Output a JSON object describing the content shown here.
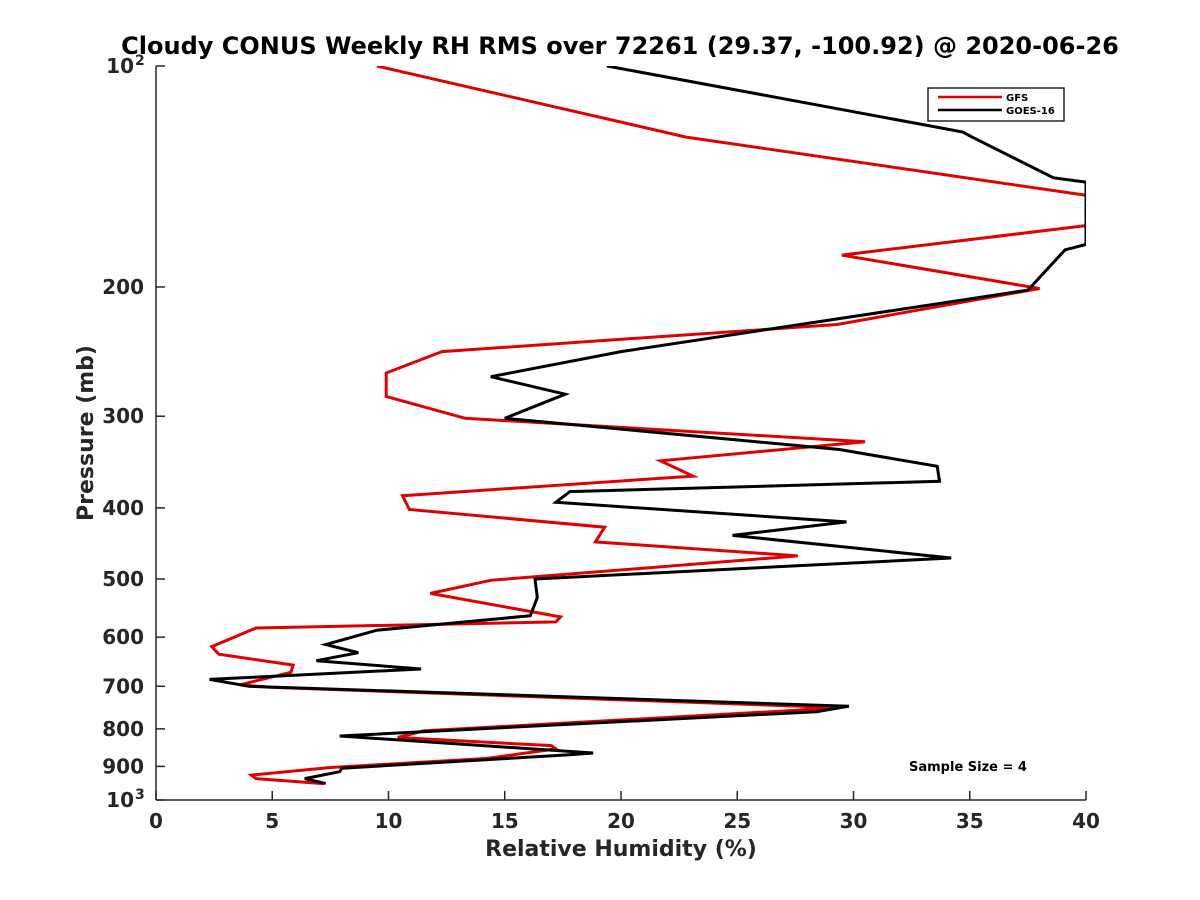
{
  "chart_data": {
    "type": "line",
    "title": "Cloudy CONUS Weekly RH RMS over 72261 (29.37, -100.92) @ 2020-06-26",
    "xlabel": "Relative Humidity (%)",
    "ylabel": "Pressure (mb)",
    "xlim": [
      0,
      40
    ],
    "ylim": [
      100,
      1000
    ],
    "y_scale": "log",
    "y_reversed": true,
    "grid": false,
    "legend_position": "top-right",
    "x_ticks": [
      0,
      5,
      10,
      15,
      20,
      25,
      30,
      35,
      40
    ],
    "y_ticks": [
      {
        "value": 100,
        "label": "10",
        "exp": "2"
      },
      {
        "value": 200,
        "label": "200"
      },
      {
        "value": 300,
        "label": "300"
      },
      {
        "value": 400,
        "label": "400"
      },
      {
        "value": 500,
        "label": "500"
      },
      {
        "value": 600,
        "label": "600"
      },
      {
        "value": 700,
        "label": "700"
      },
      {
        "value": 800,
        "label": "800"
      },
      {
        "value": 900,
        "label": "900"
      },
      {
        "value": 1000,
        "label": "10",
        "exp": "3"
      }
    ],
    "series": [
      {
        "name": "GFS",
        "color": "#e00000",
        "points": [
          [
            9.5,
            100
          ],
          [
            22.8,
            125
          ],
          [
            40.0,
            150
          ],
          [
            40.0,
            165
          ],
          [
            29.5,
            181
          ],
          [
            38.0,
            201
          ],
          [
            29.3,
            225
          ],
          [
            12.3,
            245
          ],
          [
            9.9,
            262
          ],
          [
            9.9,
            282
          ],
          [
            13.3,
            302
          ],
          [
            30.5,
            325
          ],
          [
            21.7,
            345
          ],
          [
            23.1,
            362
          ],
          [
            10.6,
            385
          ],
          [
            10.9,
            402
          ],
          [
            19.3,
            425
          ],
          [
            18.9,
            445
          ],
          [
            27.6,
            465
          ],
          [
            14.4,
            502
          ],
          [
            11.8,
            523
          ],
          [
            17.4,
            563
          ],
          [
            17.2,
            572
          ],
          [
            4.3,
            583
          ],
          [
            2.4,
            618
          ],
          [
            2.7,
            633
          ],
          [
            5.9,
            655
          ],
          [
            5.8,
            670
          ],
          [
            3.6,
            697
          ],
          [
            4.9,
            702
          ],
          [
            29.1,
            748
          ],
          [
            27.5,
            755
          ],
          [
            11.5,
            805
          ],
          [
            10.4,
            822
          ],
          [
            17.0,
            843
          ],
          [
            17.2,
            852
          ],
          [
            14.2,
            878
          ],
          [
            7.5,
            903
          ],
          [
            4.1,
            925
          ],
          [
            4.3,
            935
          ],
          [
            7.2,
            950
          ]
        ]
      },
      {
        "name": "GOES-16",
        "color": "#000000",
        "points": [
          [
            19.4,
            100
          ],
          [
            34.7,
            123
          ],
          [
            35.1,
            125
          ],
          [
            38.6,
            142
          ],
          [
            40.0,
            144
          ],
          [
            40.0,
            175
          ],
          [
            39.1,
            178
          ],
          [
            37.5,
            202
          ],
          [
            20.0,
            245
          ],
          [
            14.4,
            265
          ],
          [
            17.6,
            280
          ],
          [
            15.0,
            302
          ],
          [
            29.4,
            333
          ],
          [
            33.6,
            351
          ],
          [
            33.7,
            368
          ],
          [
            17.8,
            380
          ],
          [
            17.2,
            393
          ],
          [
            29.7,
            418
          ],
          [
            24.8,
            436
          ],
          [
            34.2,
            468
          ],
          [
            16.3,
            500
          ],
          [
            16.4,
            530
          ],
          [
            16.1,
            561
          ],
          [
            9.5,
            587
          ],
          [
            7.3,
            614
          ],
          [
            8.7,
            630
          ],
          [
            6.9,
            646
          ],
          [
            11.4,
            663
          ],
          [
            2.3,
            685
          ],
          [
            4.0,
            700
          ],
          [
            29.8,
            745
          ],
          [
            28.4,
            758
          ],
          [
            7.9,
            818
          ],
          [
            18.8,
            863
          ],
          [
            17.7,
            868
          ],
          [
            8.0,
            905
          ],
          [
            7.9,
            915
          ],
          [
            6.4,
            935
          ],
          [
            7.3,
            950
          ]
        ]
      }
    ],
    "annotations": [
      {
        "text": "Sample Size = 4"
      }
    ]
  }
}
